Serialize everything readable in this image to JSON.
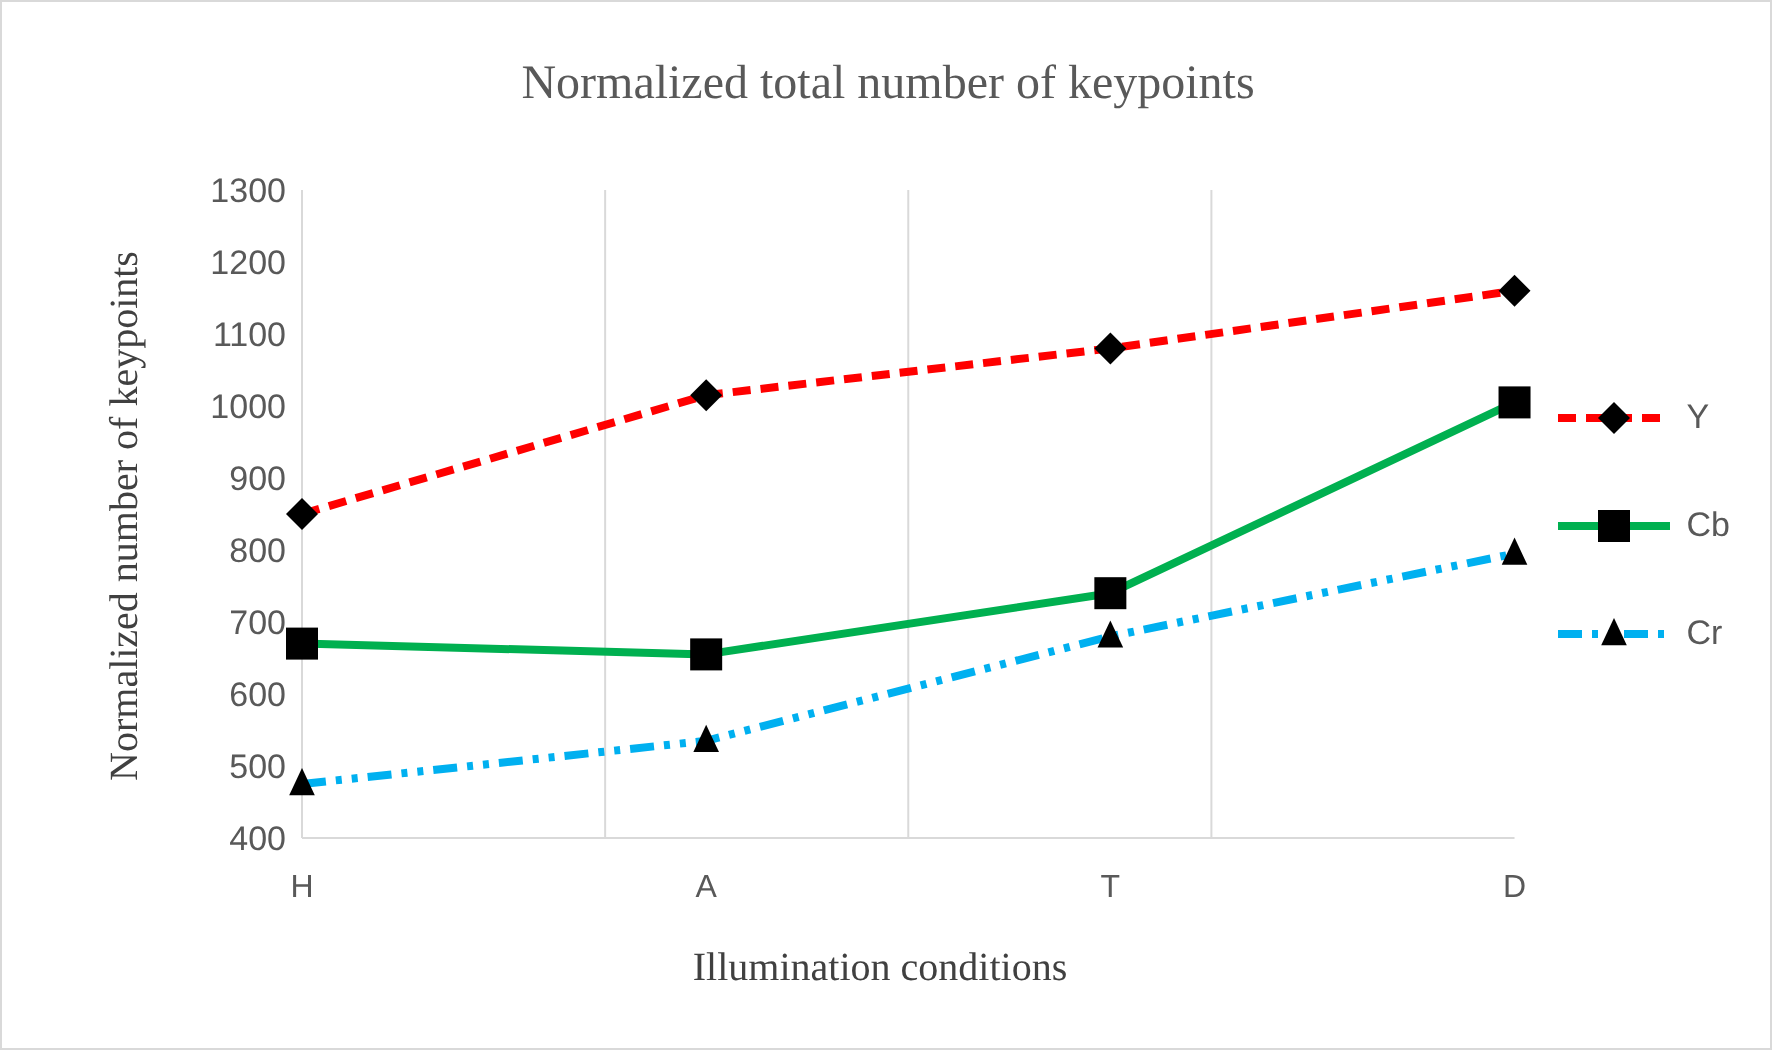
{
  "chart_data": {
    "type": "line",
    "title": "Normalized total number of keypoints",
    "xlabel": "Illumination conditions",
    "ylabel": "Normalized number of keypoints",
    "categories": [
      "H",
      "A",
      "T",
      "D"
    ],
    "series": [
      {
        "name": "Y",
        "color": "#ff0000",
        "values": [
          850,
          1015,
          1080,
          1160
        ],
        "marker": "diamond",
        "line_style": "dashed"
      },
      {
        "name": "Cb",
        "color": "#00b050",
        "values": [
          670,
          655,
          740,
          1005
        ],
        "marker": "square",
        "line_style": "solid"
      },
      {
        "name": "Cr",
        "color": "#00b0f0",
        "values": [
          475,
          535,
          680,
          795
        ],
        "marker": "triangle",
        "line_style": "dotted"
      }
    ],
    "ylim": [
      400,
      1300
    ],
    "yticks": [
      400,
      500,
      600,
      700,
      800,
      900,
      1000,
      1100,
      1200,
      1300
    ],
    "grid": "x",
    "legend": "right"
  }
}
